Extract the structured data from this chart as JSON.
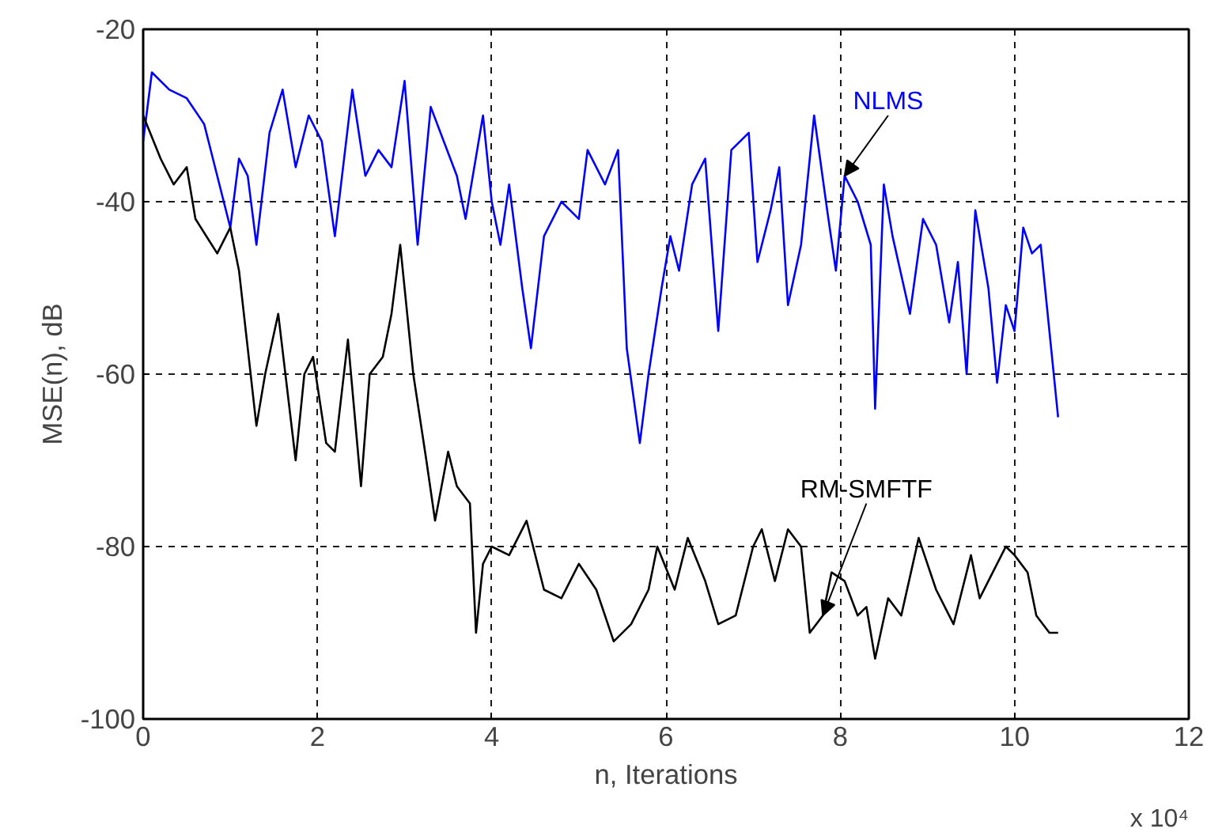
{
  "chart_data": {
    "type": "line",
    "xlabel": "n, Iterations",
    "ylabel": "MSE(n), dB",
    "xlim": [
      0,
      12
    ],
    "xticks": [
      0,
      2,
      4,
      6,
      8,
      10,
      12
    ],
    "ylim": [
      -100,
      -20
    ],
    "yticks": [
      -100,
      -80,
      -60,
      -40,
      -20
    ],
    "grid": true,
    "line_style": "solid",
    "annotations": [
      "x 10⁴"
    ],
    "series": [
      {
        "name": "NLMS",
        "color": "#0000ff",
        "x": [
          0,
          0.1,
          0.3,
          0.5,
          0.7,
          0.8,
          1.0,
          1.1,
          1.2,
          1.3,
          1.45,
          1.6,
          1.75,
          1.9,
          2.05,
          2.2,
          2.4,
          2.55,
          2.7,
          2.85,
          3.0,
          3.15,
          3.3,
          3.45,
          3.6,
          3.7,
          3.9,
          4.0,
          4.1,
          4.2,
          4.35,
          4.45,
          4.6,
          4.8,
          5.0,
          5.1,
          5.3,
          5.45,
          5.55,
          5.7,
          5.8,
          5.95,
          6.05,
          6.15,
          6.3,
          6.45,
          6.6,
          6.75,
          6.95,
          7.05,
          7.2,
          7.3,
          7.4,
          7.55,
          7.7,
          7.85,
          7.95,
          8.05,
          8.2,
          8.35,
          8.4,
          8.5,
          8.6,
          8.8,
          8.95,
          9.1,
          9.25,
          9.35,
          9.45,
          9.55,
          9.7,
          9.8,
          9.9,
          10.0,
          10.1,
          10.2,
          10.3,
          10.4,
          10.5
        ],
        "values": [
          -33,
          -25,
          -27,
          -28,
          -31,
          -35,
          -43,
          -35,
          -37,
          -45,
          -32,
          -27,
          -36,
          -30,
          -33,
          -44,
          -27,
          -37,
          -34,
          -36,
          -26,
          -45,
          -29,
          -33,
          -37,
          -42,
          -30,
          -40,
          -45,
          -38,
          -50,
          -57,
          -44,
          -40,
          -42,
          -34,
          -38,
          -34,
          -57,
          -68,
          -60,
          -50,
          -44,
          -48,
          -38,
          -35,
          -55,
          -34,
          -32,
          -47,
          -41,
          -36,
          -52,
          -45,
          -30,
          -41,
          -48,
          -37,
          -40,
          -45,
          -64,
          -38,
          -44,
          -53,
          -42,
          -45,
          -54,
          -47,
          -60,
          -41,
          -50,
          -61,
          -52,
          -55,
          -43,
          -46,
          -45,
          -55,
          -65
        ]
      },
      {
        "name": "RM-SMFTF",
        "color": "#000000",
        "x": [
          0,
          0.2,
          0.35,
          0.5,
          0.6,
          0.85,
          1.0,
          1.1,
          1.3,
          1.4,
          1.55,
          1.75,
          1.85,
          1.95,
          2.1,
          2.2,
          2.35,
          2.5,
          2.6,
          2.75,
          2.85,
          2.95,
          3.1,
          3.25,
          3.35,
          3.5,
          3.6,
          3.75,
          3.82,
          3.9,
          4.0,
          4.2,
          4.4,
          4.6,
          4.8,
          5.0,
          5.2,
          5.4,
          5.6,
          5.8,
          5.9,
          6.1,
          6.25,
          6.45,
          6.6,
          6.8,
          7.0,
          7.1,
          7.25,
          7.4,
          7.55,
          7.65,
          7.8,
          7.9,
          8.05,
          8.2,
          8.3,
          8.4,
          8.55,
          8.7,
          8.9,
          9.1,
          9.3,
          9.5,
          9.6,
          9.75,
          9.9,
          10.0,
          10.15,
          10.25,
          10.4,
          10.5
        ],
        "values": [
          -30,
          -35,
          -38,
          -36,
          -42,
          -46,
          -43,
          -48,
          -66,
          -60,
          -53,
          -70,
          -60,
          -58,
          -68,
          -69,
          -56,
          -73,
          -60,
          -58,
          -53,
          -45,
          -60,
          -70,
          -77,
          -69,
          -73,
          -75,
          -90,
          -82,
          -80,
          -81,
          -77,
          -85,
          -86,
          -82,
          -85,
          -91,
          -89,
          -85,
          -80,
          -85,
          -79,
          -84,
          -89,
          -88,
          -80,
          -78,
          -84,
          -78,
          -80,
          -90,
          -88,
          -83,
          -84,
          -88,
          -87,
          -93,
          -86,
          -88,
          -79,
          -85,
          -89,
          -81,
          -86,
          -83,
          -80,
          -81,
          -83,
          -88,
          -90,
          -90
        ]
      }
    ]
  }
}
